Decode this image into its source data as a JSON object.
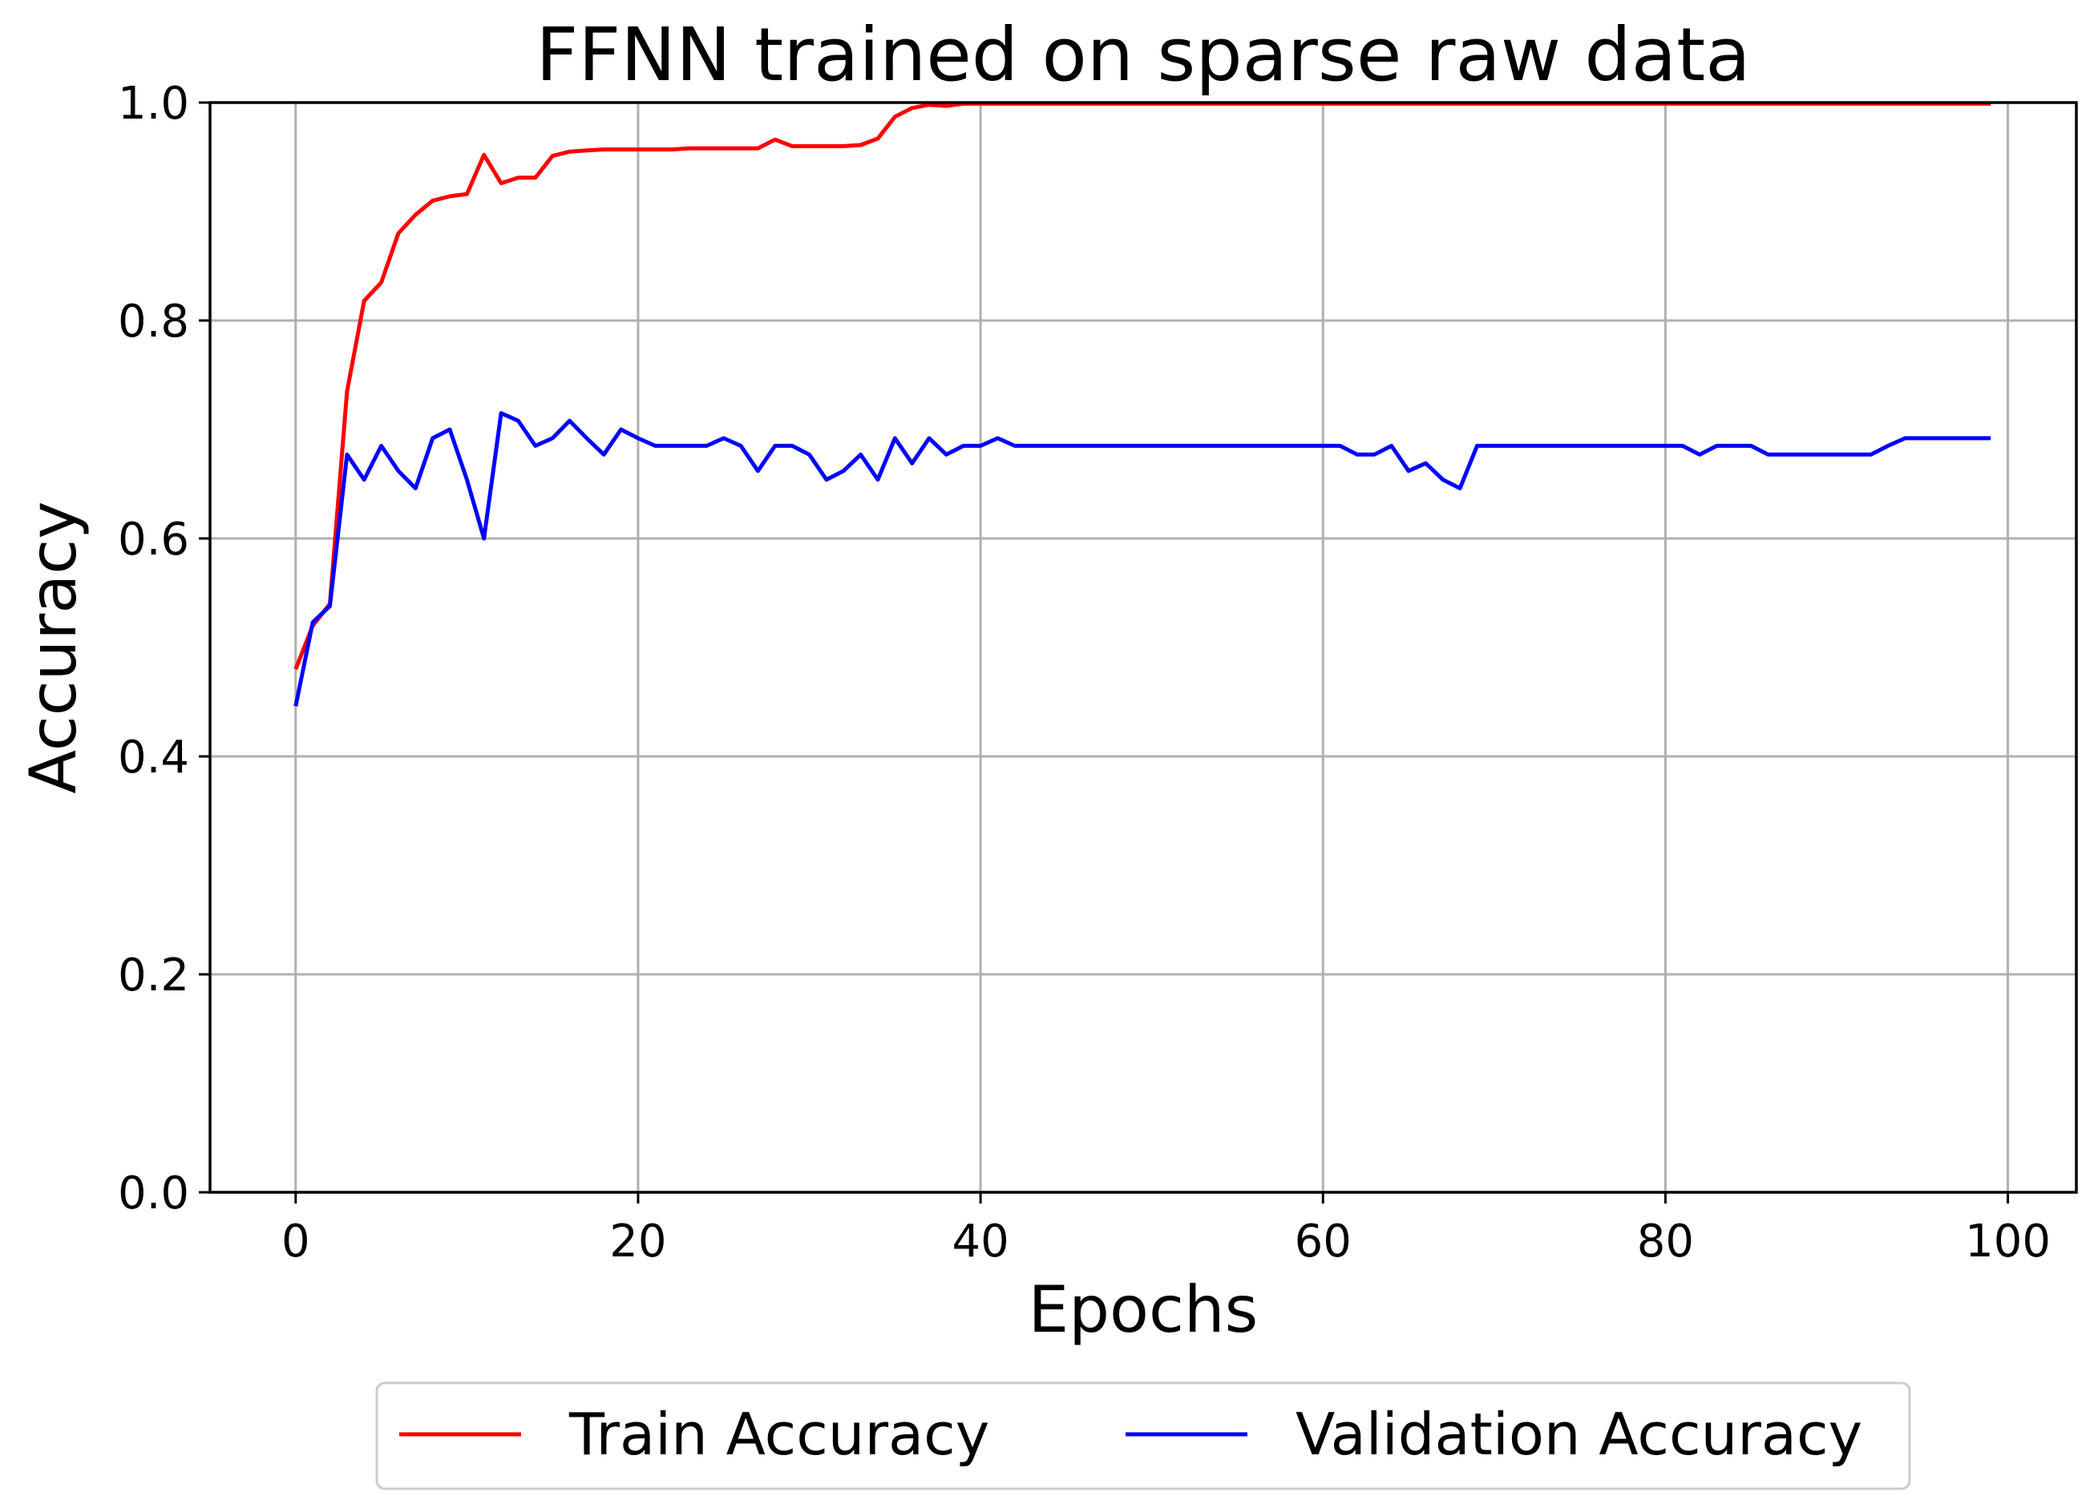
{
  "chart_data": {
    "type": "line",
    "title": "FFNN trained on sparse raw data",
    "xlabel": "Epochs",
    "ylabel": "Accuracy",
    "xlim": [
      -5,
      104
    ],
    "ylim": [
      0.0,
      1.0
    ],
    "xticks": [
      0,
      20,
      40,
      60,
      80,
      100
    ],
    "yticks": [
      0.0,
      0.2,
      0.4,
      0.6,
      0.8,
      1.0
    ],
    "xtick_labels": [
      "0",
      "20",
      "40",
      "60",
      "80",
      "100"
    ],
    "ytick_labels": [
      "0.0",
      "0.2",
      "0.4",
      "0.6",
      "0.8",
      "1.0"
    ],
    "grid": true,
    "legend": {
      "placement": "bottom-center-outside",
      "columns": 2
    },
    "series": [
      {
        "name": "Train Accuracy",
        "color": "#ff0000",
        "values": [
          0.48,
          0.52,
          0.54,
          0.735,
          0.818,
          0.835,
          0.88,
          0.897,
          0.91,
          0.914,
          0.916,
          0.952,
          0.926,
          0.931,
          0.931,
          0.951,
          0.955,
          0.956,
          0.957,
          0.957,
          0.957,
          0.957,
          0.957,
          0.958,
          0.958,
          0.958,
          0.958,
          0.958,
          0.966,
          0.96,
          0.96,
          0.96,
          0.96,
          0.961,
          0.967,
          0.987,
          0.995,
          0.998,
          0.997,
          0.999,
          0.999,
          0.999,
          0.999,
          0.999,
          0.999,
          0.999,
          0.999,
          0.999,
          0.999,
          0.999,
          0.999,
          0.999,
          0.999,
          0.999,
          0.999,
          0.999,
          0.999,
          0.999,
          0.999,
          0.999,
          0.999,
          0.999,
          0.999,
          0.999,
          0.999,
          0.999,
          0.999,
          0.999,
          0.999,
          0.999,
          0.999,
          0.999,
          0.999,
          0.999,
          0.999,
          0.999,
          0.999,
          0.999,
          0.999,
          0.999,
          0.999,
          0.999,
          0.999,
          0.999,
          0.999,
          0.999,
          0.999,
          0.999,
          0.999,
          0.999,
          0.999,
          0.999,
          0.999,
          0.999,
          0.999,
          0.999,
          0.999,
          0.999,
          0.999,
          0.999
        ]
      },
      {
        "name": "Validation Accuracy",
        "color": "#0000ff",
        "values": [
          0.446,
          0.523,
          0.538,
          0.677,
          0.654,
          0.685,
          0.662,
          0.646,
          0.692,
          0.7,
          0.654,
          0.6,
          0.715,
          0.708,
          0.685,
          0.692,
          0.708,
          0.692,
          0.677,
          0.7,
          0.692,
          0.685,
          0.685,
          0.685,
          0.685,
          0.692,
          0.685,
          0.662,
          0.685,
          0.685,
          0.677,
          0.654,
          0.662,
          0.677,
          0.654,
          0.692,
          0.669,
          0.692,
          0.677,
          0.685,
          0.685,
          0.692,
          0.685,
          0.685,
          0.685,
          0.685,
          0.685,
          0.685,
          0.685,
          0.685,
          0.685,
          0.685,
          0.685,
          0.685,
          0.685,
          0.685,
          0.685,
          0.685,
          0.685,
          0.685,
          0.685,
          0.685,
          0.677,
          0.677,
          0.685,
          0.662,
          0.669,
          0.654,
          0.646,
          0.685,
          0.685,
          0.685,
          0.685,
          0.685,
          0.685,
          0.685,
          0.685,
          0.685,
          0.685,
          0.685,
          0.685,
          0.685,
          0.677,
          0.685,
          0.685,
          0.685,
          0.677,
          0.677,
          0.677,
          0.677,
          0.677,
          0.677,
          0.677,
          0.685,
          0.692,
          0.692,
          0.692,
          0.692,
          0.692,
          0.692
        ]
      }
    ]
  }
}
